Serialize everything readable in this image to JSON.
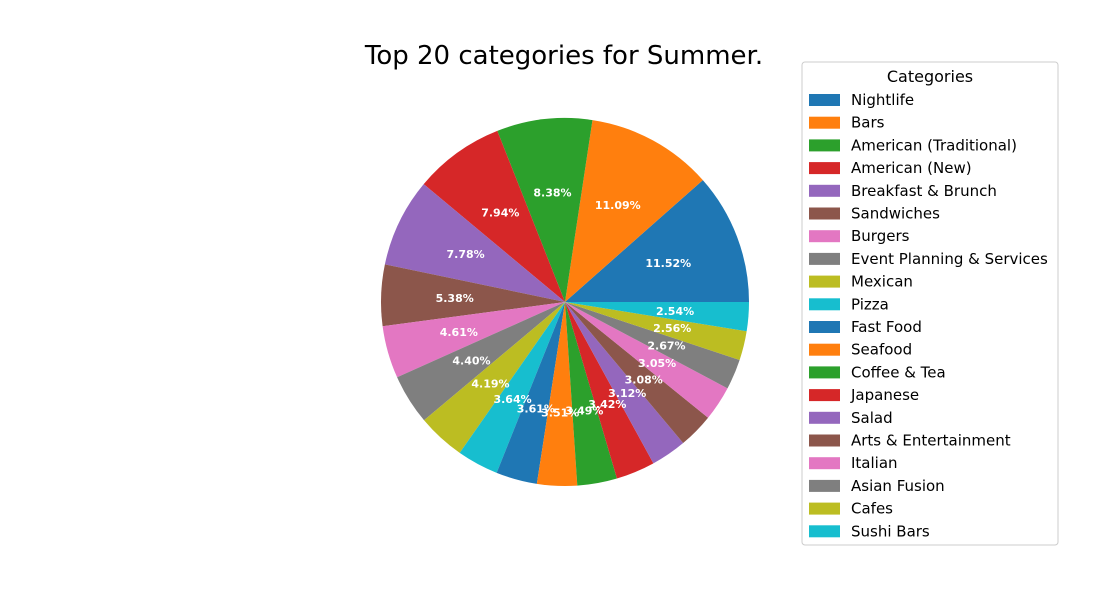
{
  "chart_data": {
    "type": "pie",
    "title": "Top 20 categories for Summer.",
    "legend_title": "Categories",
    "legend_position": "right",
    "start_angle_deg": 0,
    "direction": "counterclockwise",
    "categories": [
      "Nightlife",
      "Bars",
      "American (Traditional)",
      "American (New)",
      "Breakfast & Brunch",
      "Sandwiches",
      "Burgers",
      "Event Planning & Services",
      "Mexican",
      "Pizza",
      "Fast Food",
      "Seafood",
      "Coffee & Tea",
      "Japanese",
      "Salad",
      "Arts & Entertainment",
      "Italian",
      "Asian Fusion",
      "Cafes",
      "Sushi Bars"
    ],
    "values": [
      11.52,
      11.09,
      8.38,
      7.94,
      7.78,
      5.38,
      4.61,
      4.4,
      4.19,
      3.64,
      3.61,
      3.51,
      3.49,
      3.42,
      3.12,
      3.08,
      3.05,
      2.67,
      2.56,
      2.54
    ],
    "labels": [
      "11.52%",
      "11.09%",
      "8.38%",
      "7.94%",
      "7.78%",
      "5.38%",
      "4.61%",
      "4.40%",
      "4.19%",
      "3.64%",
      "3.61%",
      "3.51%",
      "3.49%",
      "3.42%",
      "3.12%",
      "3.08%",
      "3.05%",
      "2.67%",
      "2.56%",
      "2.54%"
    ],
    "colors": [
      "#1f77b4",
      "#ff7f0e",
      "#2ca02c",
      "#d62728",
      "#9467bd",
      "#8c564b",
      "#e377c2",
      "#7f7f7f",
      "#bcbd22",
      "#17becf",
      "#1f77b4",
      "#ff7f0e",
      "#2ca02c",
      "#d62728",
      "#9467bd",
      "#8c564b",
      "#e377c2",
      "#7f7f7f",
      "#bcbd22",
      "#17becf"
    ]
  }
}
